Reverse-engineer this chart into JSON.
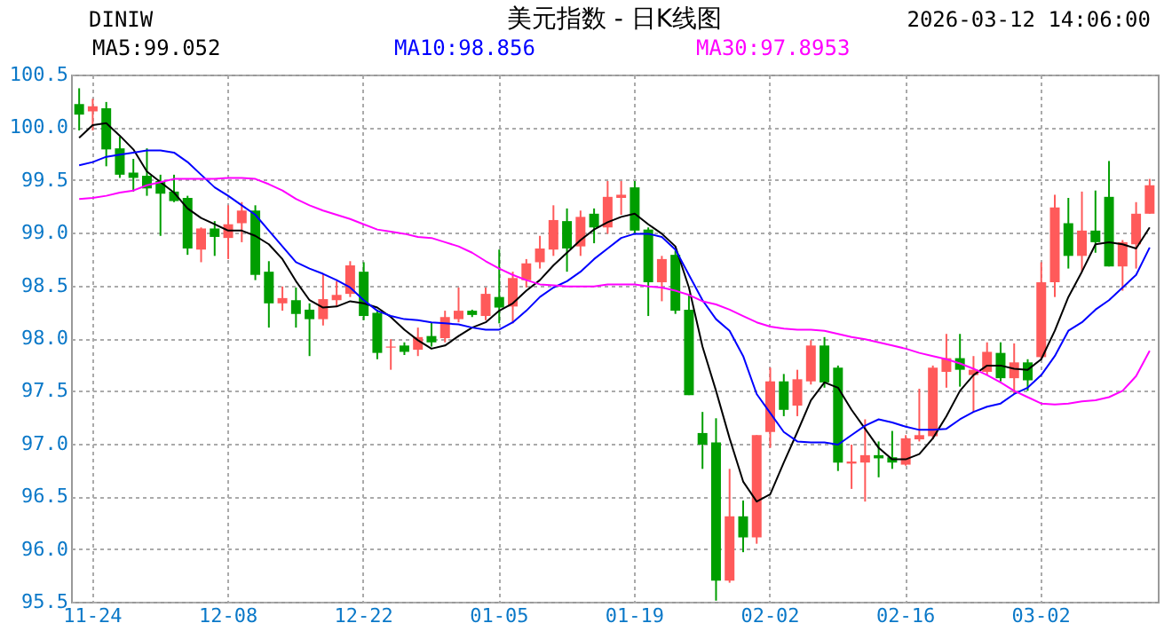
{
  "chart_data": {
    "type": "candlestick",
    "title": "美元指数 - 日K线图",
    "annotations": [
      "DINIW",
      "2026-03-12 14:06:00"
    ],
    "categories": [
      null,
      "11-24",
      null,
      null,
      null,
      null,
      null,
      null,
      null,
      null,
      null,
      "12-08",
      null,
      null,
      null,
      null,
      null,
      null,
      null,
      null,
      null,
      "12-22",
      null,
      null,
      null,
      null,
      null,
      null,
      null,
      null,
      null,
      "01-05",
      null,
      null,
      null,
      null,
      null,
      null,
      null,
      null,
      null,
      "01-19",
      null,
      null,
      null,
      null,
      null,
      null,
      null,
      null,
      null,
      "02-02",
      null,
      null,
      null,
      null,
      null,
      null,
      null,
      null,
      null,
      "02-16",
      null,
      null,
      null,
      null,
      null,
      null,
      null,
      null,
      null,
      "03-02",
      null,
      null,
      null,
      null,
      null,
      null,
      null,
      null
    ],
    "ohlc": [
      [
        100.22,
        100.37,
        99.97,
        100.12
      ],
      [
        100.15,
        100.27,
        99.97,
        100.2
      ],
      [
        100.18,
        100.24,
        99.63,
        99.79
      ],
      [
        99.8,
        99.91,
        99.52,
        99.55
      ],
      [
        99.57,
        99.7,
        99.39,
        99.52
      ],
      [
        99.54,
        99.8,
        99.35,
        99.42
      ],
      [
        99.49,
        99.55,
        98.97,
        99.37
      ],
      [
        99.39,
        99.55,
        99.29,
        99.3
      ],
      [
        99.33,
        99.35,
        98.79,
        98.85
      ],
      [
        98.84,
        99.05,
        98.72,
        99.04
      ],
      [
        99.04,
        99.11,
        98.78,
        98.96
      ],
      [
        98.95,
        99.26,
        98.75,
        99.08
      ],
      [
        99.09,
        99.29,
        98.91,
        99.21
      ],
      [
        99.21,
        99.26,
        98.55,
        98.6
      ],
      [
        98.63,
        98.73,
        98.1,
        98.33
      ],
      [
        98.33,
        98.49,
        98.26,
        98.38
      ],
      [
        98.36,
        98.48,
        98.1,
        98.23
      ],
      [
        98.27,
        98.33,
        97.83,
        98.18
      ],
      [
        98.18,
        98.61,
        98.12,
        98.37
      ],
      [
        98.36,
        98.54,
        98.3,
        98.41
      ],
      [
        98.42,
        98.73,
        98.39,
        98.69
      ],
      [
        98.63,
        98.72,
        98.17,
        98.21
      ],
      [
        98.24,
        98.27,
        97.8,
        97.86
      ],
      [
        97.91,
        97.99,
        97.7,
        97.92
      ],
      [
        97.93,
        97.96,
        97.84,
        97.87
      ],
      [
        97.89,
        98.1,
        97.83,
        98.01
      ],
      [
        98.02,
        98.15,
        97.92,
        97.96
      ],
      [
        98,
        98.26,
        97.96,
        98.2
      ],
      [
        98.18,
        98.48,
        98.15,
        98.26
      ],
      [
        98.26,
        98.27,
        98.2,
        98.22
      ],
      [
        98.21,
        98.48,
        98.17,
        98.42
      ],
      [
        98.39,
        98.84,
        98.14,
        98.29
      ],
      [
        98.3,
        98.63,
        98.14,
        98.57
      ],
      [
        98.55,
        98.75,
        98.48,
        98.71
      ],
      [
        98.72,
        98.97,
        98.66,
        98.85
      ],
      [
        98.84,
        99.26,
        98.78,
        99.12
      ],
      [
        99.11,
        99.23,
        98.63,
        98.85
      ],
      [
        98.87,
        99.21,
        98.78,
        99.15
      ],
      [
        99.18,
        99.23,
        98.9,
        99.05
      ],
      [
        99.05,
        99.49,
        98.99,
        99.34
      ],
      [
        99.33,
        99.49,
        99.17,
        99.36
      ],
      [
        99.43,
        99.49,
        98.99,
        99.02
      ],
      [
        99.03,
        99.05,
        98.21,
        98.53
      ],
      [
        98.53,
        98.78,
        98.35,
        98.75
      ],
      [
        98.79,
        98.83,
        98.23,
        98.26
      ],
      [
        98.27,
        98.42,
        97.46,
        97.46
      ],
      [
        97.1,
        97.3,
        96.76,
        96.99
      ],
      [
        97.01,
        97.24,
        95.51,
        95.7
      ],
      [
        95.7,
        96.76,
        95.68,
        96.31
      ],
      [
        96.31,
        96.46,
        95.97,
        96.11
      ],
      [
        96.11,
        97.08,
        96.05,
        97.08
      ],
      [
        97.11,
        97.72,
        96.96,
        97.59
      ],
      [
        97.59,
        97.66,
        97.26,
        97.32
      ],
      [
        97.36,
        97.7,
        97.26,
        97.61
      ],
      [
        97.59,
        97.98,
        97.56,
        97.93
      ],
      [
        97.93,
        98.01,
        97.53,
        97.58
      ],
      [
        97.72,
        97.74,
        96.74,
        96.82
      ],
      [
        96.81,
        96.99,
        96.57,
        96.83
      ],
      [
        96.82,
        97.23,
        96.45,
        96.89
      ],
      [
        96.89,
        97.02,
        96.68,
        96.86
      ],
      [
        96.87,
        97.12,
        96.76,
        96.82
      ],
      [
        96.8,
        97.08,
        96.79,
        97.05
      ],
      [
        97.04,
        97.52,
        97.02,
        97.08
      ],
      [
        97.07,
        97.74,
        97.04,
        97.72
      ],
      [
        97.68,
        98.04,
        97.53,
        97.81
      ],
      [
        97.81,
        98.04,
        97.54,
        97.7
      ],
      [
        97.65,
        97.83,
        97.3,
        97.7
      ],
      [
        97.68,
        97.96,
        97.65,
        97.87
      ],
      [
        97.86,
        97.96,
        97.59,
        97.62
      ],
      [
        97.62,
        97.95,
        97.47,
        97.77
      ],
      [
        97.77,
        97.8,
        97.5,
        97.6
      ],
      [
        97.82,
        98.72,
        97.8,
        98.53
      ],
      [
        98.53,
        99.36,
        98.39,
        99.24
      ],
      [
        99.09,
        99.33,
        98.66,
        98.78
      ],
      [
        98.78,
        99.39,
        98.63,
        99.02
      ],
      [
        99.02,
        99.4,
        98.81,
        98.91
      ],
      [
        99.34,
        99.68,
        98.68,
        98.68
      ],
      [
        98.68,
        98.93,
        98.45,
        98.91
      ],
      [
        98.89,
        99.29,
        98.66,
        99.18
      ],
      [
        99.18,
        99.51,
        99.18,
        99.45
      ]
    ],
    "colors": [
      "#009e00",
      "#ff5a5a",
      "#009e00",
      "#009e00",
      "#009e00",
      "#009e00",
      "#009e00",
      "#009e00",
      "#009e00",
      "#ff5a5a",
      "#009e00",
      "#ff5a5a",
      "#ff5a5a",
      "#009e00",
      "#009e00",
      "#ff5a5a",
      "#009e00",
      "#009e00",
      "#ff5a5a",
      "#ff5a5a",
      "#ff5a5a",
      "#009e00",
      "#009e00",
      "#ff5a5a",
      "#009e00",
      "#ff5a5a",
      "#009e00",
      "#ff5a5a",
      "#ff5a5a",
      "#009e00",
      "#ff5a5a",
      "#009e00",
      "#ff5a5a",
      "#ff5a5a",
      "#ff5a5a",
      "#ff5a5a",
      "#009e00",
      "#ff5a5a",
      "#009e00",
      "#ff5a5a",
      "#ff5a5a",
      "#009e00",
      "#009e00",
      "#ff5a5a",
      "#009e00",
      "#009e00",
      "#009e00",
      "#009e00",
      "#ff5a5a",
      "#009e00",
      "#ff5a5a",
      "#ff5a5a",
      "#009e00",
      "#ff5a5a",
      "#ff5a5a",
      "#009e00",
      "#009e00",
      "#ff5a5a",
      "#ff5a5a",
      "#009e00",
      "#009e00",
      "#ff5a5a",
      "#ff5a5a",
      "#ff5a5a",
      "#ff5a5a",
      "#009e00",
      "#ff5a5a",
      "#ff5a5a",
      "#009e00",
      "#ff5a5a",
      "#009e00",
      "#ff5a5a",
      "#ff5a5a",
      "#009e00",
      "#ff5a5a",
      "#009e00",
      "#009e00",
      "#ff5a5a",
      "#ff5a5a",
      "#ff5a5a"
    ],
    "series": [
      {
        "name": "MA5:99.052",
        "type": "line",
        "color": "#000000",
        "values": [
          99.9,
          100.02,
          100.04,
          99.92,
          99.79,
          99.58,
          99.48,
          99.38,
          99.23,
          99.14,
          99.08,
          99.02,
          99.02,
          98.97,
          98.89,
          98.75,
          98.54,
          98.36,
          98.29,
          98.3,
          98.35,
          98.33,
          98.29,
          98.2,
          98.08,
          97.98,
          97.9,
          97.93,
          98.02,
          98.1,
          98.15,
          98.26,
          98.33,
          98.45,
          98.55,
          98.69,
          98.81,
          98.93,
          99.03,
          99.1,
          99.15,
          99.18,
          99.08,
          98.99,
          98.87,
          98.48,
          97.92,
          97.5,
          97.05,
          96.64,
          96.45,
          96.52,
          96.82,
          97.11,
          97.41,
          97.58,
          97.53,
          97.32,
          97.14,
          96.96,
          96.85,
          96.85,
          96.9,
          97.05,
          97.26,
          97.5,
          97.65,
          97.74,
          97.74,
          97.71,
          97.7,
          97.8,
          98.07,
          98.39,
          98.63,
          98.89,
          98.91,
          98.89,
          98.85,
          99.05
        ]
      },
      {
        "name": "MA10:98.856",
        "type": "line",
        "color": "#0000ff",
        "values": [
          99.64,
          99.67,
          99.72,
          99.74,
          99.76,
          99.78,
          99.78,
          99.76,
          99.67,
          99.55,
          99.43,
          99.35,
          99.26,
          99.17,
          99.02,
          98.87,
          98.72,
          98.66,
          98.61,
          98.55,
          98.48,
          98.36,
          98.26,
          98.21,
          98.18,
          98.17,
          98.15,
          98.14,
          98.13,
          98.1,
          98.08,
          98.08,
          98.15,
          98.26,
          98.39,
          98.48,
          98.54,
          98.63,
          98.75,
          98.85,
          98.95,
          98.99,
          98.99,
          98.96,
          98.84,
          98.6,
          98.36,
          98.18,
          98.07,
          97.83,
          97.47,
          97.29,
          97.11,
          97.02,
          97.01,
          97.01,
          96.99,
          97.08,
          97.17,
          97.23,
          97.2,
          97.16,
          97.13,
          97.13,
          97.14,
          97.23,
          97.3,
          97.35,
          97.38,
          97.47,
          97.53,
          97.65,
          97.83,
          98.07,
          98.15,
          98.27,
          98.36,
          98.48,
          98.6,
          98.86
        ]
      },
      {
        "name": "MA30:97.8953",
        "type": "line",
        "color": "#ff00ff",
        "values": [
          99.32,
          99.33,
          99.35,
          99.38,
          99.4,
          99.45,
          99.48,
          99.51,
          99.51,
          99.51,
          99.51,
          99.52,
          99.52,
          99.51,
          99.46,
          99.4,
          99.32,
          99.26,
          99.21,
          99.17,
          99.13,
          99.08,
          99.03,
          99.01,
          98.99,
          98.96,
          98.95,
          98.91,
          98.87,
          98.81,
          98.73,
          98.66,
          98.6,
          98.55,
          98.51,
          98.5,
          98.49,
          98.49,
          98.49,
          98.51,
          98.51,
          98.51,
          98.49,
          98.48,
          98.45,
          98.41,
          98.35,
          98.32,
          98.27,
          98.21,
          98.15,
          98.11,
          98.09,
          98.08,
          98.08,
          98.07,
          98.04,
          98.01,
          97.99,
          97.96,
          97.93,
          97.9,
          97.86,
          97.83,
          97.8,
          97.76,
          97.71,
          97.65,
          97.58,
          97.5,
          97.44,
          97.38,
          97.37,
          97.38,
          97.4,
          97.41,
          97.44,
          97.5,
          97.64,
          97.88
        ]
      }
    ],
    "ylim": [
      95.5,
      100.5
    ],
    "yticks": [
      95.5,
      {
        "value": 96,
        "label": "96.0"
      },
      96.5,
      {
        "value": 97,
        "label": "97.0"
      },
      97.5,
      {
        "value": 98,
        "label": "98.0"
      },
      98.5,
      {
        "value": 99,
        "label": "99.0"
      },
      99.5,
      {
        "value": 100,
        "label": "100.0"
      },
      100.5
    ],
    "grid": true
  }
}
